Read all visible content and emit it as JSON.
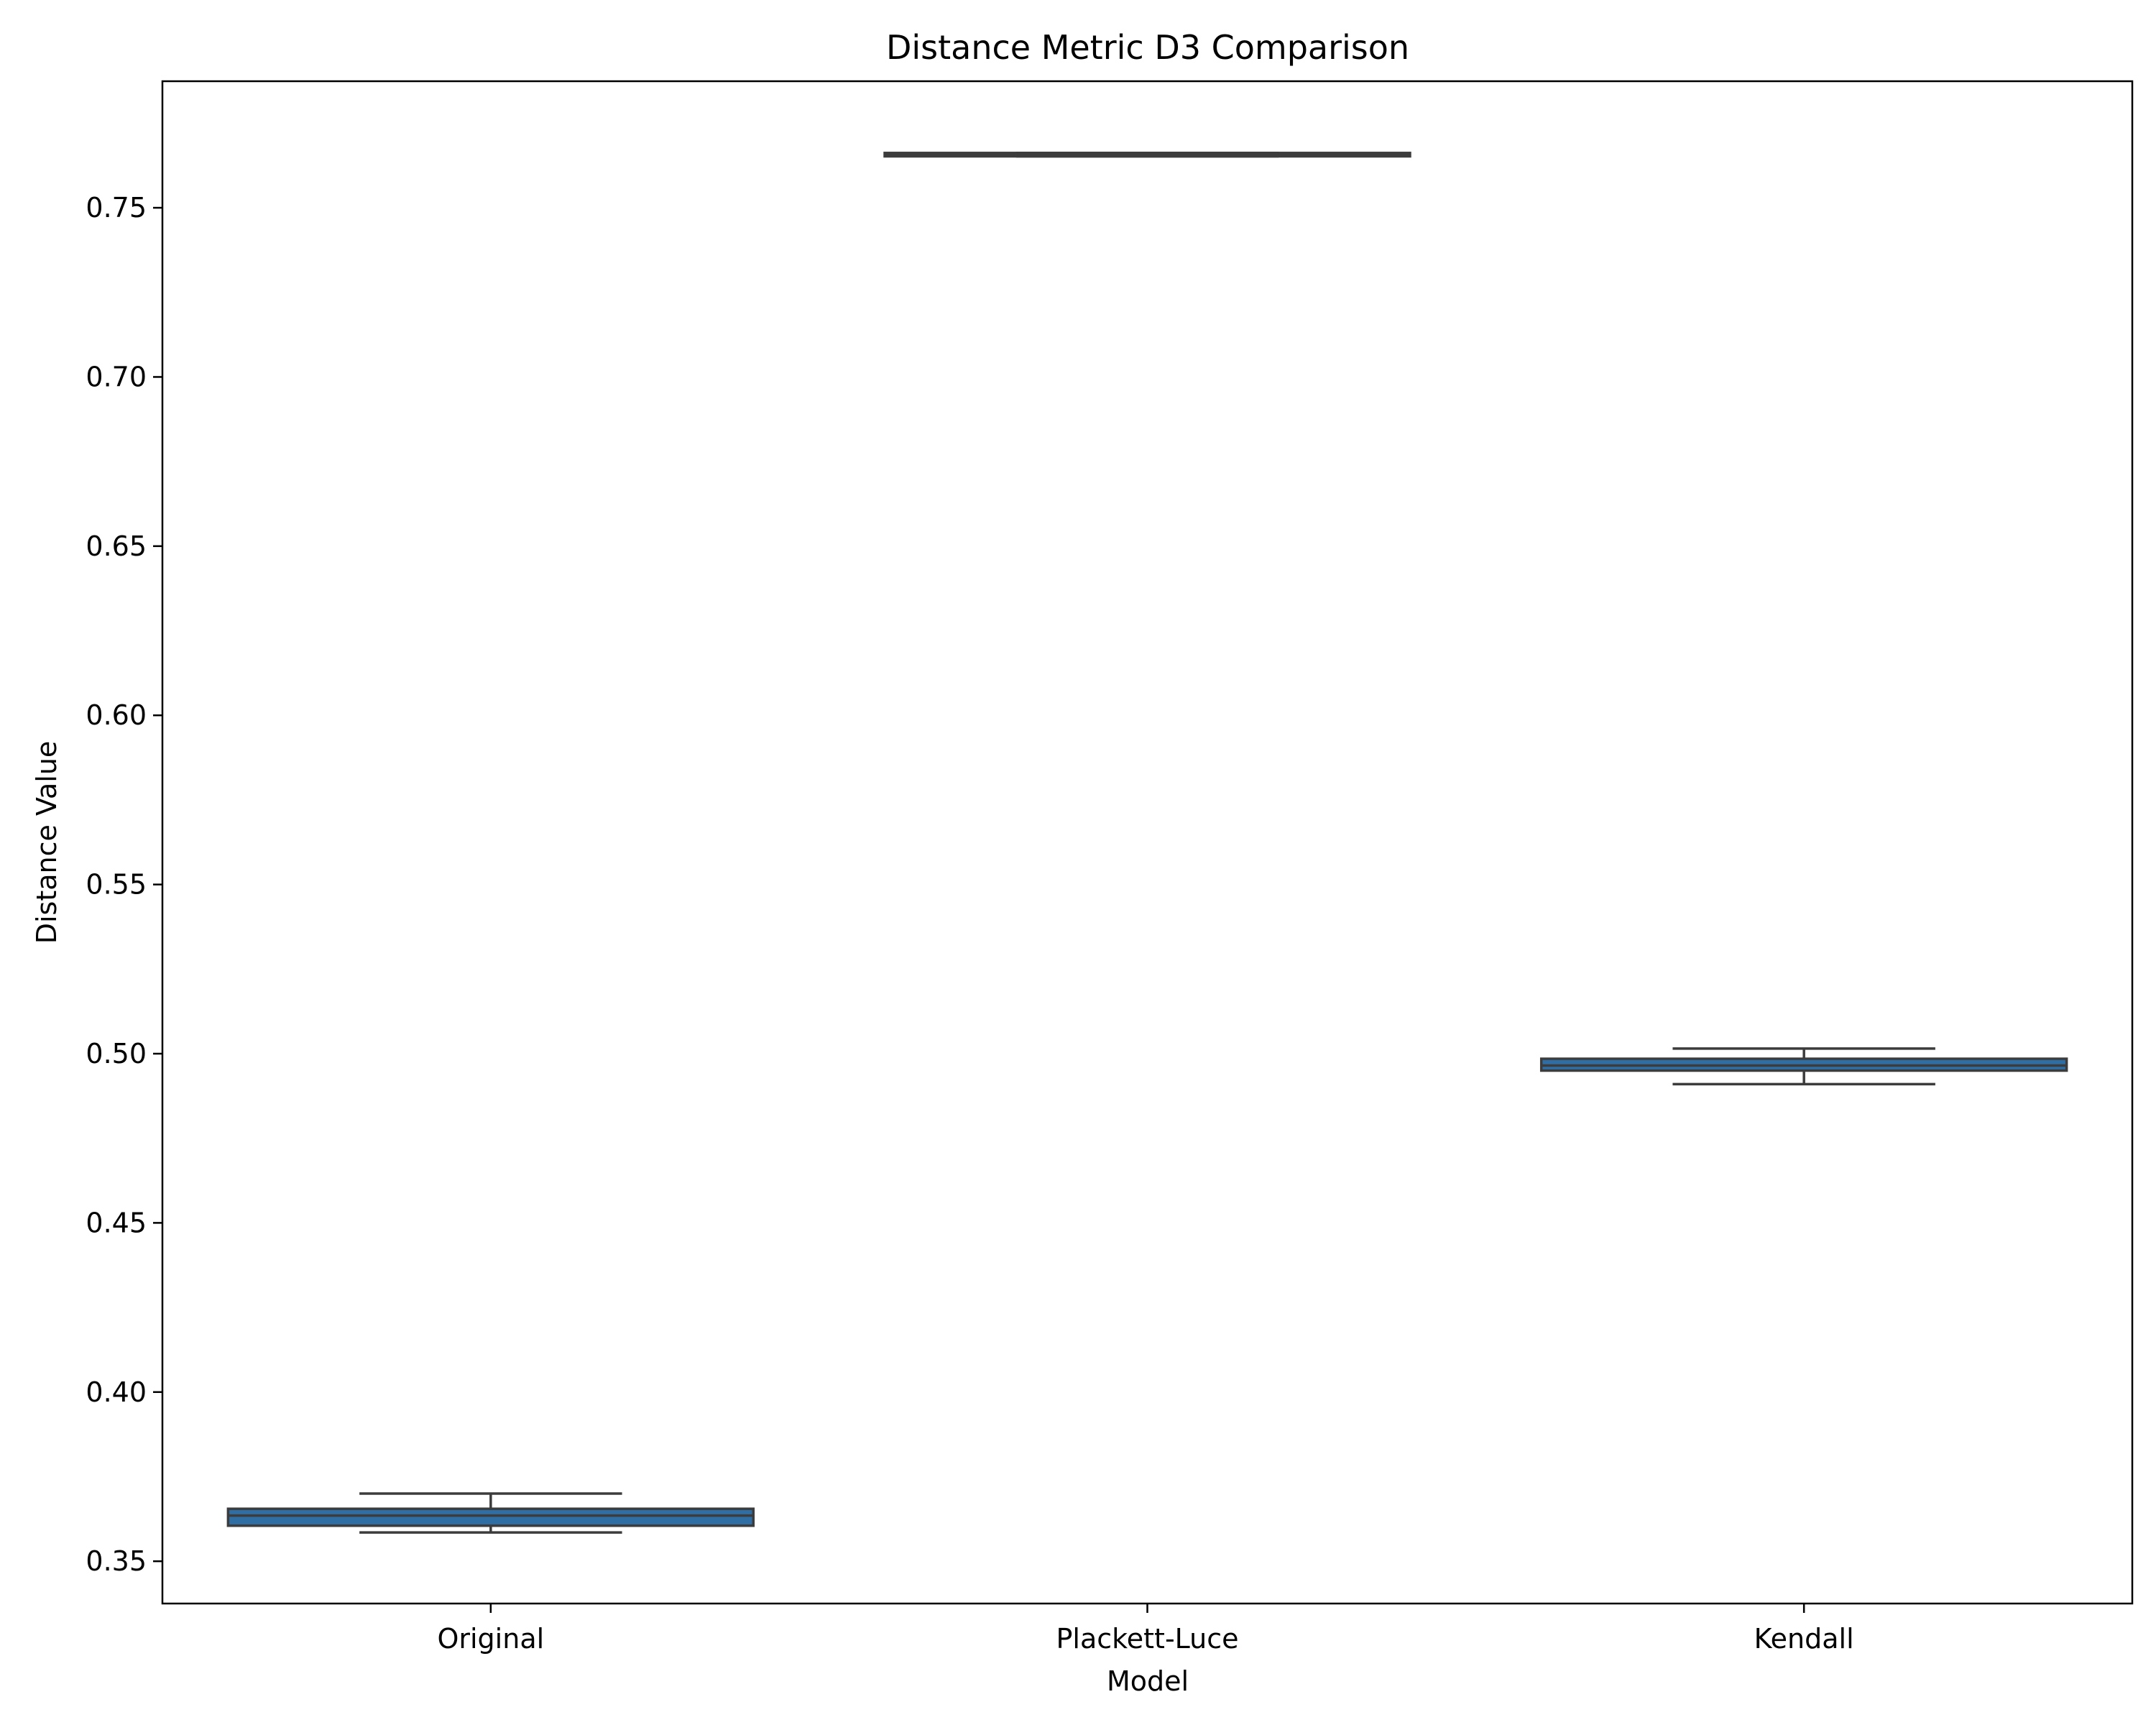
{
  "chart_data": {
    "type": "box",
    "title": "Distance Metric D3 Comparison",
    "xlabel": "Model",
    "ylabel": "Distance Value",
    "categories": [
      "Original",
      "Plackett-Luce",
      "Kendall"
    ],
    "boxes": [
      {
        "category": "Original",
        "whisker_low": 0.3585,
        "q1": 0.3605,
        "median": 0.3635,
        "q3": 0.3655,
        "whisker_high": 0.37
      },
      {
        "category": "Plackett-Luce",
        "whisker_low": 0.7652,
        "q1": 0.7652,
        "median": 0.7657,
        "q3": 0.7662,
        "whisker_high": 0.7662
      },
      {
        "category": "Kendall",
        "whisker_low": 0.491,
        "q1": 0.495,
        "median": 0.4965,
        "q3": 0.4985,
        "whisker_high": 0.5015
      }
    ],
    "yticks": [
      0.35,
      0.4,
      0.45,
      0.5,
      0.55,
      0.6,
      0.65,
      0.7,
      0.75
    ],
    "ytick_labels": [
      "0.35",
      "0.40",
      "0.45",
      "0.50",
      "0.55",
      "0.60",
      "0.65",
      "0.70",
      "0.75"
    ],
    "ylim": [
      0.3375,
      0.7874
    ],
    "grid": false,
    "box_color": "#2f6ea4",
    "line_color": "#3c3c3c"
  }
}
